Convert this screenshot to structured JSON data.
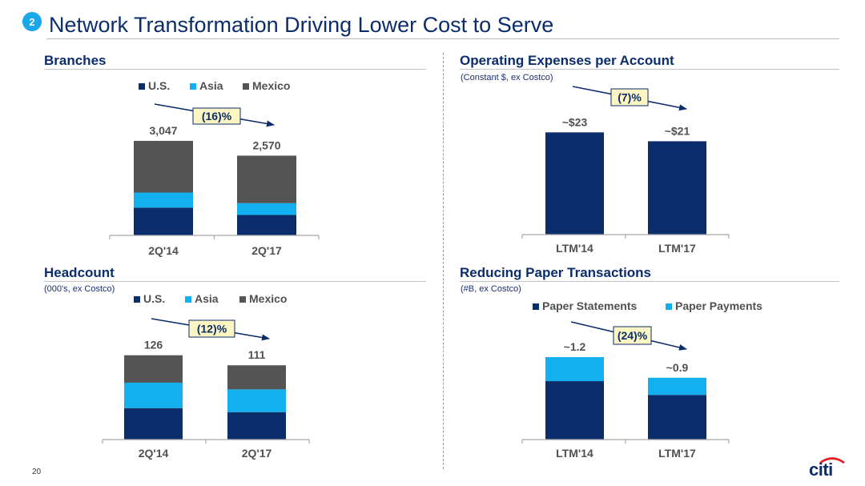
{
  "slide": {
    "badge": "2",
    "title": "Network Transformation Driving Lower Cost to Serve",
    "page_number": "20",
    "logo_text": "citi"
  },
  "colors": {
    "navy": "#0b2d6b",
    "cyan": "#12b0ef",
    "gray": "#545454",
    "callout_fill": "#fdf6c3"
  },
  "chart_data": [
    {
      "id": "branches",
      "type": "bar",
      "stacked": true,
      "title": "Branches",
      "subtitle": "",
      "categories": [
        "2Q'14",
        "2Q'17"
      ],
      "series": [
        {
          "name": "U.S.",
          "color": "#0b2d6b",
          "values": [
            895,
            660
          ]
        },
        {
          "name": "Asia",
          "color": "#12b0ef",
          "values": [
            485,
            380
          ]
        },
        {
          "name": "Mexico",
          "color": "#545454",
          "values": [
            1667,
            1530
          ]
        }
      ],
      "totals": [
        3047,
        2570
      ],
      "total_labels": [
        "3,047",
        "2,570"
      ],
      "ylim": [
        0,
        3200
      ],
      "callout": "(16)%"
    },
    {
      "id": "opex",
      "type": "bar",
      "stacked": false,
      "title": "Operating Expenses per Account",
      "subtitle": "(Constant $, ex Costco)",
      "categories": [
        "LTM'14",
        "LTM'17"
      ],
      "series": [
        {
          "name": "Operating Expenses per Account",
          "color": "#0b2d6b",
          "values": [
            23,
            21
          ]
        }
      ],
      "totals": [
        23,
        21
      ],
      "total_labels": [
        "~$23",
        "~$21"
      ],
      "ylim": [
        0,
        24.5
      ],
      "callout": "(7)%"
    },
    {
      "id": "headcount",
      "type": "bar",
      "stacked": true,
      "title": "Headcount",
      "subtitle": "(000's, ex Costco)",
      "categories": [
        "2Q'14",
        "2Q'17"
      ],
      "series": [
        {
          "name": "U.S.",
          "color": "#0b2d6b",
          "values": [
            47,
            41
          ]
        },
        {
          "name": "Asia",
          "color": "#12b0ef",
          "values": [
            38,
            34
          ]
        },
        {
          "name": "Mexico",
          "color": "#545454",
          "values": [
            41,
            36
          ]
        }
      ],
      "totals": [
        126,
        111
      ],
      "total_labels": [
        "126",
        "111"
      ],
      "ylim": [
        0,
        134
      ],
      "callout": "(12)%"
    },
    {
      "id": "paper",
      "type": "bar",
      "stacked": true,
      "title": "Reducing Paper Transactions",
      "subtitle": "(#B, ex Costco)",
      "categories": [
        "LTM'14",
        "LTM'17"
      ],
      "series": [
        {
          "name": "Paper Statements",
          "color": "#0b2d6b",
          "values": [
            0.85,
            0.65
          ]
        },
        {
          "name": "Paper Payments",
          "color": "#12b0ef",
          "values": [
            0.35,
            0.25
          ]
        }
      ],
      "totals": [
        1.2,
        0.9
      ],
      "total_labels": [
        "~1.2",
        "~0.9"
      ],
      "ylim": [
        0,
        1.27
      ],
      "callout": "(24)%"
    }
  ]
}
